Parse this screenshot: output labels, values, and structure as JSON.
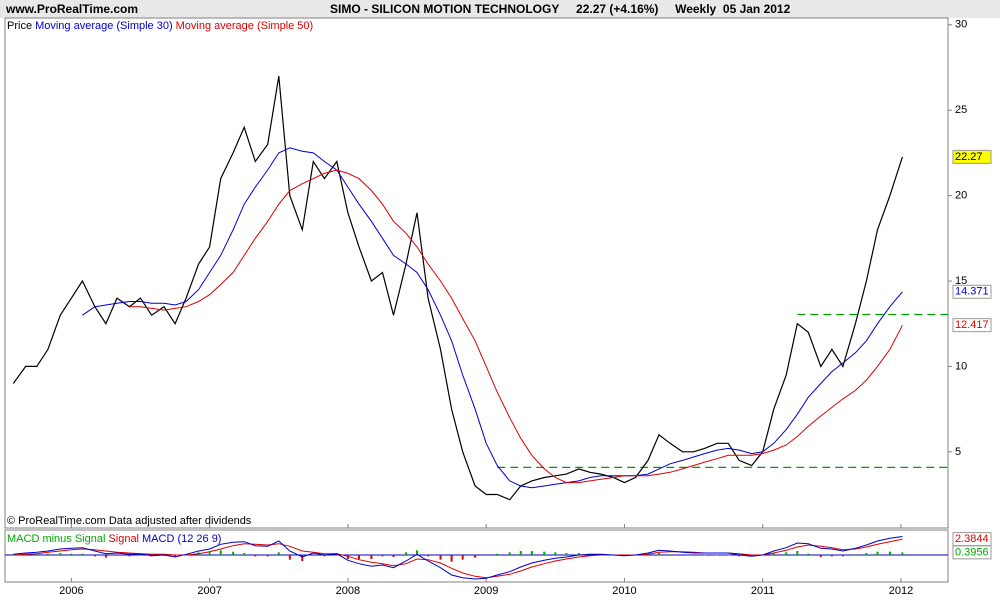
{
  "header": {
    "site": "www.ProRealTime.com",
    "title": "SIMO - SILICON MOTION TECHNOLOGY",
    "quote": "22.27 (+4.16%)",
    "period": "Weekly",
    "date": "05 Jan 2012"
  },
  "footer": "© ProRealTime.com  Data adjusted after dividends",
  "chart_data": [
    {
      "type": "line",
      "x": [
        2005.58,
        2005.67,
        2005.75,
        2005.83,
        2005.92,
        2006.0,
        2006.08,
        2006.17,
        2006.25,
        2006.33,
        2006.42,
        2006.5,
        2006.58,
        2006.67,
        2006.75,
        2006.83,
        2006.92,
        2007.0,
        2007.08,
        2007.17,
        2007.25,
        2007.33,
        2007.42,
        2007.5,
        2007.58,
        2007.67,
        2007.75,
        2007.83,
        2007.92,
        2008.0,
        2008.08,
        2008.17,
        2008.25,
        2008.33,
        2008.42,
        2008.5,
        2008.58,
        2008.67,
        2008.75,
        2008.83,
        2008.92,
        2009.0,
        2009.08,
        2009.17,
        2009.25,
        2009.33,
        2009.42,
        2009.5,
        2009.58,
        2009.67,
        2009.75,
        2009.83,
        2009.92,
        2010.0,
        2010.08,
        2010.17,
        2010.25,
        2010.33,
        2010.42,
        2010.5,
        2010.58,
        2010.67,
        2010.75,
        2010.83,
        2010.92,
        2011.0,
        2011.08,
        2011.17,
        2011.25,
        2011.33,
        2011.42,
        2011.5,
        2011.58,
        2011.67,
        2011.75,
        2011.83,
        2011.92,
        2012.01
      ],
      "series": [
        {
          "name": "Price",
          "color": "#000000",
          "label_fill": "#ffff00",
          "values": [
            9,
            10,
            10,
            11,
            13,
            14,
            15,
            13.5,
            12.5,
            14,
            13.5,
            14,
            13,
            13.5,
            12.5,
            14,
            16,
            17,
            21,
            22.5,
            24,
            22,
            23,
            27,
            20,
            18,
            22,
            21,
            22,
            19,
            17,
            15,
            15.5,
            13,
            16,
            19,
            14,
            11,
            7.5,
            5,
            3,
            2.5,
            2.5,
            2.2,
            3,
            3.3,
            3.5,
            3.6,
            3.7,
            4,
            3.8,
            3.7,
            3.5,
            3.2,
            3.5,
            4.5,
            6,
            5.5,
            5,
            5,
            5.2,
            5.5,
            5.5,
            4.5,
            4.2,
            5,
            7.5,
            9.5,
            12.5,
            12,
            10,
            11,
            10,
            12.5,
            15,
            18,
            20,
            22.27
          ]
        },
        {
          "name": "Moving average (Simple 30)",
          "color": "#0000cc",
          "label_fill": "#ffffff",
          "values": [
            null,
            null,
            null,
            null,
            null,
            null,
            13,
            13.5,
            13.6,
            13.7,
            13.8,
            13.8,
            13.7,
            13.7,
            13.6,
            13.8,
            14.5,
            15.5,
            16.5,
            18,
            19.5,
            20.5,
            21.5,
            22.5,
            22.8,
            22.6,
            22.5,
            22,
            21.5,
            20.5,
            19.5,
            18.5,
            17.5,
            16.5,
            16,
            15.5,
            14.5,
            13,
            11.5,
            9.5,
            7.5,
            5.5,
            4.2,
            3.3,
            3,
            2.9,
            3,
            3.1,
            3.2,
            3.3,
            3.5,
            3.6,
            3.6,
            3.6,
            3.6,
            3.7,
            4,
            4.3,
            4.5,
            4.7,
            4.9,
            5.1,
            5.2,
            5.1,
            4.9,
            5,
            5.5,
            6.3,
            7.2,
            8.2,
            9,
            9.7,
            10.2,
            10.8,
            11.5,
            12.5,
            13.5,
            14.371
          ]
        },
        {
          "name": "Moving average (Simple 50)",
          "color": "#dd0000",
          "label_fill": "#ffffff",
          "values": [
            null,
            null,
            null,
            null,
            null,
            null,
            null,
            null,
            null,
            null,
            13.5,
            13.5,
            13.4,
            13.3,
            13.4,
            13.5,
            13.8,
            14.2,
            14.8,
            15.5,
            16.5,
            17.5,
            18.5,
            19.5,
            20.3,
            20.7,
            21,
            21.3,
            21.5,
            21.3,
            21,
            20.3,
            19.5,
            18.5,
            17.8,
            17,
            16,
            15,
            14,
            12.8,
            11.5,
            10,
            8.5,
            7,
            5.8,
            4.8,
            4,
            3.5,
            3.2,
            3.2,
            3.3,
            3.4,
            3.5,
            3.6,
            3.6,
            3.6,
            3.7,
            3.8,
            4,
            4.2,
            4.4,
            4.6,
            4.8,
            4.8,
            4.8,
            4.9,
            5.1,
            5.4,
            5.9,
            6.5,
            7.1,
            7.6,
            8.1,
            8.6,
            9.2,
            10,
            11,
            12.417
          ]
        }
      ],
      "levels": [
        {
          "value": 13.04,
          "start": 2011.25,
          "color": "#00a000"
        },
        {
          "value": 4.09,
          "start": 2009.08,
          "color": "#00a000"
        }
      ],
      "xlim": [
        2005.52,
        2012.34
      ],
      "xticks": [
        2006,
        2007,
        2008,
        2009,
        2010,
        2011,
        2012
      ],
      "ylim": [
        0.6,
        30.4
      ],
      "yticks": [
        5,
        10,
        15,
        20,
        25,
        30
      ],
      "grid": false
    },
    {
      "type": "macd",
      "x": [
        2005.58,
        2005.67,
        2005.75,
        2005.83,
        2005.92,
        2006.0,
        2006.08,
        2006.17,
        2006.25,
        2006.33,
        2006.42,
        2006.5,
        2006.58,
        2006.67,
        2006.75,
        2006.83,
        2006.92,
        2007.0,
        2007.08,
        2007.17,
        2007.25,
        2007.33,
        2007.42,
        2007.5,
        2007.58,
        2007.67,
        2007.75,
        2007.83,
        2007.92,
        2008.0,
        2008.08,
        2008.17,
        2008.25,
        2008.33,
        2008.42,
        2008.5,
        2008.58,
        2008.67,
        2008.75,
        2008.83,
        2008.92,
        2009.0,
        2009.08,
        2009.17,
        2009.25,
        2009.33,
        2009.42,
        2009.5,
        2009.58,
        2009.67,
        2009.75,
        2009.83,
        2009.92,
        2010.0,
        2010.08,
        2010.17,
        2010.25,
        2010.33,
        2010.42,
        2010.5,
        2010.58,
        2010.67,
        2010.75,
        2010.83,
        2010.92,
        2011.0,
        2011.08,
        2011.17,
        2011.25,
        2011.33,
        2011.42,
        2011.5,
        2011.58,
        2011.67,
        2011.75,
        2011.83,
        2011.92,
        2012.01
      ],
      "series": [
        {
          "name": "MACD minus Signal",
          "kind": "histogram",
          "color": "#00aa00",
          "negative_color": "#dd0000",
          "label_fill": "#ffffff",
          "values": [
            0.1,
            0.2,
            0.2,
            0.2,
            0.3,
            0.2,
            0.2,
            -0.2,
            -0.4,
            -0.1,
            -0.2,
            0.0,
            -0.2,
            -0.1,
            -0.3,
            0.1,
            0.4,
            0.4,
            0.7,
            0.5,
            0.3,
            -0.2,
            -0.2,
            0.4,
            -0.7,
            -0.9,
            -0.1,
            -0.2,
            0.0,
            -0.6,
            -0.6,
            -0.6,
            -0.2,
            -0.3,
            0.4,
            0.7,
            -0.2,
            -0.7,
            -1.0,
            -0.7,
            -0.4,
            -0.1,
            0.2,
            0.4,
            0.6,
            0.6,
            0.5,
            0.4,
            0.3,
            0.3,
            0.2,
            0.1,
            0.0,
            -0.1,
            0.0,
            0.2,
            0.3,
            0.1,
            -0.1,
            -0.1,
            0.0,
            0.0,
            0.0,
            -0.2,
            -0.2,
            0.0,
            0.3,
            0.4,
            0.6,
            0.2,
            -0.3,
            -0.2,
            -0.2,
            0.1,
            0.3,
            0.5,
            0.5,
            0.3956
          ]
        },
        {
          "name": "Signal",
          "kind": "line",
          "color": "#dd0000",
          "label_fill": "#ffffff",
          "values": [
            0.0,
            0.1,
            0.2,
            0.4,
            0.6,
            0.8,
            0.9,
            0.8,
            0.6,
            0.4,
            0.3,
            0.2,
            0.1,
            0.1,
            0.0,
            0.0,
            0.2,
            0.5,
            0.9,
            1.4,
            1.7,
            1.6,
            1.5,
            1.7,
            1.3,
            0.6,
            0.4,
            0.2,
            0.2,
            -0.2,
            -0.7,
            -1.1,
            -1.3,
            -1.6,
            -1.3,
            -0.6,
            -0.7,
            -1.2,
            -2.0,
            -2.7,
            -3.2,
            -3.4,
            -3.2,
            -2.9,
            -2.4,
            -1.8,
            -1.3,
            -0.9,
            -0.6,
            -0.3,
            -0.1,
            0.0,
            0.0,
            0.0,
            0.0,
            0.1,
            0.4,
            0.5,
            0.5,
            0.4,
            0.3,
            0.3,
            0.3,
            0.2,
            0.0,
            0.0,
            0.3,
            0.7,
            1.2,
            1.5,
            1.3,
            1.1,
            0.8,
            0.9,
            1.2,
            1.6,
            2.0,
            2.3844
          ]
        },
        {
          "name": "MACD (12 26 9)",
          "kind": "line",
          "color": "#0000cc",
          "values": [
            0.1,
            0.3,
            0.4,
            0.6,
            0.9,
            1.0,
            1.1,
            0.6,
            0.2,
            0.3,
            0.1,
            0.2,
            -0.1,
            0.0,
            -0.3,
            0.1,
            0.6,
            0.9,
            1.6,
            1.9,
            2.0,
            1.4,
            1.3,
            2.1,
            0.6,
            -0.3,
            0.3,
            0.0,
            0.2,
            -0.8,
            -1.3,
            -1.7,
            -1.5,
            -1.9,
            -0.9,
            0.1,
            -0.9,
            -1.9,
            -3.0,
            -3.4,
            -3.6,
            -3.5,
            -3.0,
            -2.5,
            -1.8,
            -1.2,
            -0.8,
            -0.5,
            -0.3,
            0.0,
            0.1,
            0.1,
            0.0,
            -0.1,
            0.0,
            0.3,
            0.7,
            0.6,
            0.4,
            0.3,
            0.3,
            0.3,
            0.3,
            0.0,
            -0.2,
            0.0,
            0.6,
            1.1,
            1.8,
            1.7,
            1.0,
            0.9,
            0.6,
            1.0,
            1.5,
            2.1,
            2.5,
            2.78
          ]
        }
      ],
      "zero_line": 0,
      "zero_color": "#0000cc",
      "xlim": [
        2005.52,
        2012.34
      ],
      "xticks": [
        2006,
        2007,
        2008,
        2009,
        2010,
        2011,
        2012
      ],
      "ylim": [
        -3.9,
        3.6
      ]
    }
  ]
}
